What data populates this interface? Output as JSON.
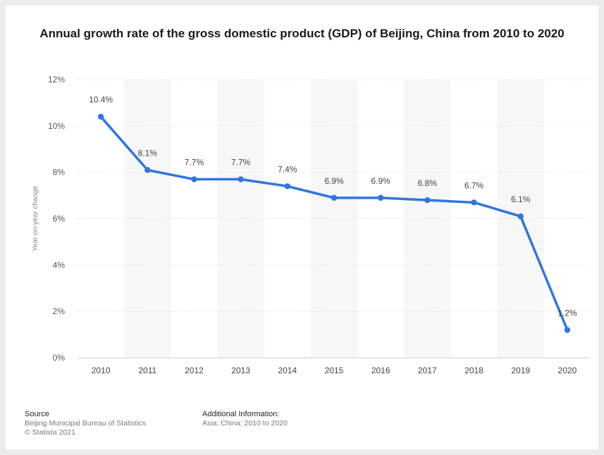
{
  "title": "Annual growth rate of the gross domestic product (GDP) of Beijing, China from 2010 to 2020",
  "footer": {
    "source_label": "Source",
    "source_line1": "Beijing Municipal Bureau of Statistics",
    "source_line2": "© Statista 2021",
    "info_label": "Additional Information:",
    "info_line1": "Asia; China; 2010 to 2020"
  },
  "colors": {
    "line": "#2f76dd",
    "band": "#f7f7f7",
    "grid": "#d6d6d6"
  },
  "chart_data": {
    "type": "line",
    "categories": [
      "2010",
      "2011",
      "2012",
      "2013",
      "2014",
      "2015",
      "2016",
      "2017",
      "2018",
      "2019",
      "2020"
    ],
    "series": [
      {
        "values": [
          10.4,
          8.1,
          7.7,
          7.7,
          7.4,
          6.9,
          6.9,
          6.8,
          6.7,
          6.1,
          1.2
        ]
      }
    ],
    "data_labels": [
      "10.4%",
      "8.1%",
      "7.7%",
      "7.7%",
      "7.4%",
      "6.9%",
      "6.9%",
      "6.8%",
      "6.7%",
      "6.1%",
      "1.2%"
    ],
    "ylabel": "Year-on-year change",
    "xlabel": "",
    "ylim": [
      0,
      12
    ],
    "yticks": [
      0,
      2,
      4,
      6,
      8,
      10,
      12
    ],
    "ytick_labels": [
      "0%",
      "2%",
      "4%",
      "6%",
      "8%",
      "10%",
      "12%"
    ],
    "grid": true,
    "alternating_bands": true
  }
}
